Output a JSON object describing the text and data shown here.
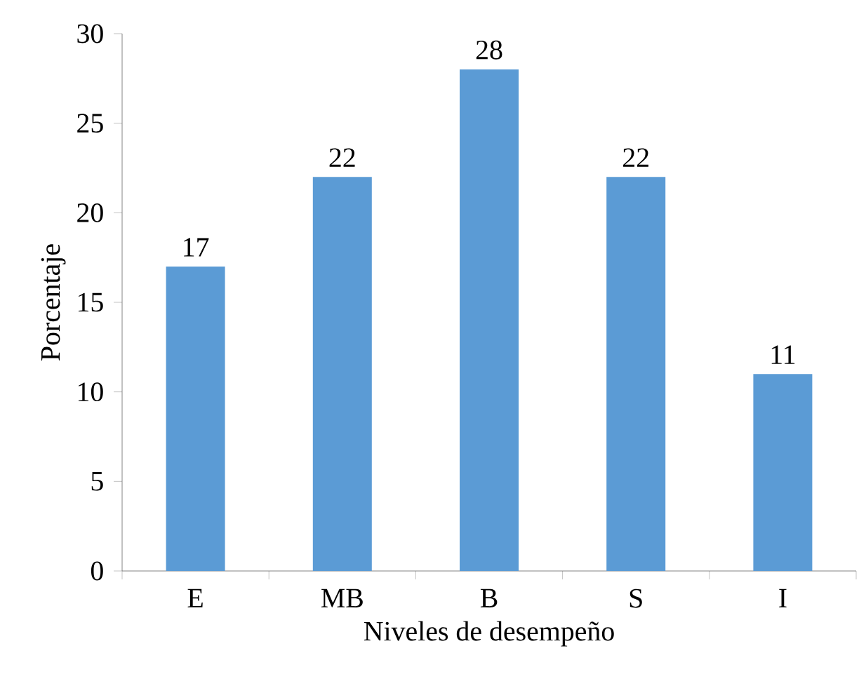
{
  "chart_data": {
    "type": "bar",
    "xlabel": "Niveles de desempeño",
    "ylabel": "Porcentaje",
    "categories": [
      "E",
      "MB",
      "B",
      "S",
      "I"
    ],
    "values": [
      17,
      22,
      28,
      22,
      11
    ],
    "color": "#5b9bd5",
    "ylim": [
      0,
      30
    ],
    "yticks": [
      0,
      5,
      10,
      15,
      20,
      25,
      30
    ],
    "data_labels": true
  }
}
